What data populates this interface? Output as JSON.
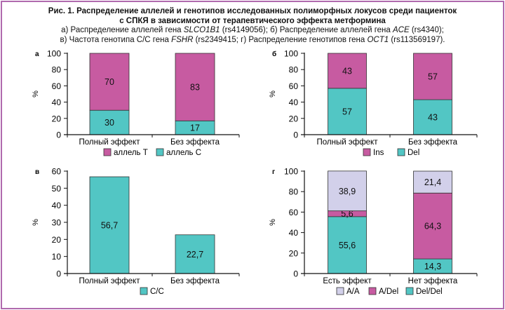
{
  "caption": {
    "line1": "Рис. 1. Распределение аллелей и генотипов исследованных полиморфных локусов среди пациенток",
    "line2": "с СПКЯ в зависимости от терапевтического эффекта метформина",
    "line3_a": "а) Распределение аллелей гена ",
    "line3_gene1": "SLCO1B1",
    "line3_b": " (rs4149056); б) Распределение аллелей гена ",
    "line3_gene2": "ACE",
    "line3_c": " (rs4340);",
    "line4_a": "в) Частота генотипа C/C гена ",
    "line4_gene1": "FSHR",
    "line4_b": " (rs2349415; г) Распределение генотипов гена ",
    "line4_gene2": "OCT1",
    "line4_c": " (rs113569197)."
  },
  "colors": {
    "magenta": "#C75BA1",
    "teal": "#52C6C4",
    "lavender": "#D2D0EA",
    "frame": "#B06AAE"
  },
  "chart_data": [
    {
      "panel": "а",
      "type": "bar",
      "stacked": true,
      "ylabel": "%",
      "ylim": [
        0,
        100
      ],
      "yticks": [
        0,
        20,
        40,
        60,
        80,
        100
      ],
      "categories": [
        "Полный эффект",
        "Без эффекта"
      ],
      "series": [
        {
          "name": "аллель C",
          "color": "#52C6C4",
          "values": [
            30,
            17
          ],
          "labels": [
            "30",
            "17"
          ]
        },
        {
          "name": "аллель T",
          "color": "#C75BA1",
          "values": [
            70,
            83
          ],
          "labels": [
            "70",
            "83"
          ]
        }
      ],
      "legend_order": [
        "аллель T",
        "аллель C"
      ],
      "legend": "bottom"
    },
    {
      "panel": "б",
      "type": "bar",
      "stacked": true,
      "ylabel": "%",
      "ylim": [
        0,
        100
      ],
      "yticks": [
        0,
        20,
        40,
        60,
        80,
        100
      ],
      "categories": [
        "Полный эффект",
        "Без эффекта"
      ],
      "series": [
        {
          "name": "Del",
          "color": "#52C6C4",
          "values": [
            57,
            43
          ],
          "labels": [
            "57",
            "43"
          ]
        },
        {
          "name": "Ins",
          "color": "#C75BA1",
          "values": [
            43,
            57
          ],
          "labels": [
            "43",
            "57"
          ]
        }
      ],
      "legend_order": [
        "Ins",
        "Del"
      ],
      "legend": "bottom"
    },
    {
      "panel": "в",
      "type": "bar",
      "stacked": false,
      "ylabel": "%",
      "ylim": [
        0,
        60
      ],
      "yticks": [
        0,
        10,
        20,
        30,
        40,
        50,
        60
      ],
      "categories": [
        "Полный эффект",
        "Без эффекта"
      ],
      "series": [
        {
          "name": "C/C",
          "color": "#52C6C4",
          "values": [
            56.7,
            22.7
          ],
          "labels": [
            "56,7",
            "22,7"
          ]
        }
      ],
      "legend_order": [
        "C/C"
      ],
      "legend": "bottom"
    },
    {
      "panel": "г",
      "type": "bar",
      "stacked": true,
      "ylabel": "%",
      "ylim": [
        0,
        100
      ],
      "yticks": [
        0,
        20,
        40,
        60,
        80,
        100
      ],
      "categories": [
        "Есть эффект",
        "Нет эффекта"
      ],
      "series": [
        {
          "name": "Del/Del",
          "color": "#52C6C4",
          "values": [
            55.6,
            14.3
          ],
          "labels": [
            "55,6",
            "14,3"
          ]
        },
        {
          "name": "A/Del",
          "color": "#C75BA1",
          "values": [
            5.6,
            64.3
          ],
          "labels": [
            "5,6",
            "64,3"
          ]
        },
        {
          "name": "A/A",
          "color": "#D2D0EA",
          "values": [
            38.9,
            21.4
          ],
          "labels": [
            "38,9",
            "21,4"
          ]
        }
      ],
      "legend_order": [
        "A/A",
        "A/Del",
        "Del/Del"
      ],
      "legend": "bottom"
    }
  ]
}
